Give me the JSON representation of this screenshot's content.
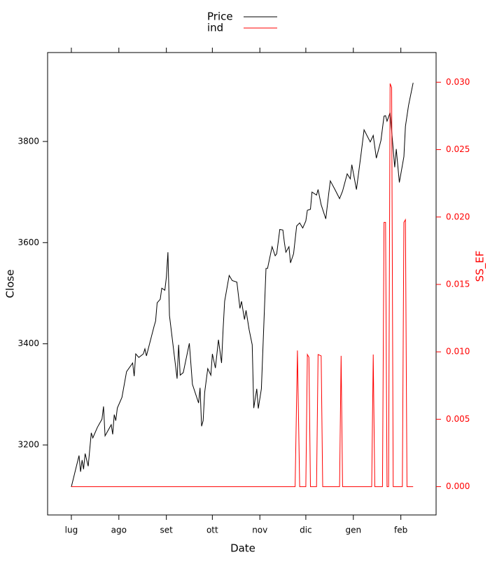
{
  "chart_data": {
    "type": "line",
    "x_label": "Date",
    "y_label": "Close",
    "y2_label": "SS_EF",
    "y2_color": "#ff0000",
    "xlim": [
      -15.5,
      238
    ],
    "xticks": [
      {
        "value": 0,
        "label": "lug"
      },
      {
        "value": 31,
        "label": "ago"
      },
      {
        "value": 62,
        "label": "set"
      },
      {
        "value": 92,
        "label": "ott"
      },
      {
        "value": 123,
        "label": "nov"
      },
      {
        "value": 153,
        "label": "dic"
      },
      {
        "value": 184,
        "label": "gen"
      },
      {
        "value": 215,
        "label": "feb"
      }
    ],
    "ylim": [
      3061.6,
      3975.8
    ],
    "yticks": [
      3200,
      3400,
      3600,
      3800
    ],
    "y2lim": [
      -0.0021,
      0.0322
    ],
    "y2ticks": [
      {
        "value": 0,
        "label": "0.000"
      },
      {
        "value": 0.005,
        "label": "0.005"
      },
      {
        "value": 0.01,
        "label": "0.010"
      },
      {
        "value": 0.015,
        "label": "0.015"
      },
      {
        "value": 0.02,
        "label": "0.020"
      },
      {
        "value": 0.025,
        "label": "0.025"
      },
      {
        "value": 0.03,
        "label": "0.030"
      }
    ],
    "legend": "top",
    "series": [
      {
        "name": "Price",
        "color": "#000000",
        "x": [
          0,
          5,
          6,
          7,
          8,
          9,
          11,
          13,
          14,
          17,
          20,
          21,
          22,
          26,
          27,
          28,
          29,
          30,
          33,
          36,
          40,
          41,
          42,
          44,
          47,
          48,
          49,
          54,
          55,
          56,
          58,
          59,
          61,
          62,
          63,
          64,
          69,
          70,
          71,
          73,
          77,
          79,
          83,
          84,
          85,
          86,
          87,
          89,
          91,
          92,
          94,
          96,
          98,
          99,
          100,
          103,
          105,
          108,
          110,
          111,
          113,
          114,
          116,
          118,
          119,
          121,
          122,
          124,
          126,
          127,
          128,
          131,
          133,
          134,
          136,
          138,
          139,
          140,
          142,
          143,
          145,
          147,
          149,
          151,
          153,
          154,
          156,
          157,
          160,
          161,
          163,
          166,
          168,
          169,
          172,
          175,
          177,
          180,
          182,
          183,
          186,
          189,
          191,
          195,
          197,
          199,
          202,
          204,
          205,
          206,
          208,
          211,
          212,
          214,
          217,
          218,
          220,
          223
        ],
        "values": [
          3117,
          3179,
          3147,
          3170,
          3152,
          3183,
          3158,
          3224,
          3214,
          3235,
          3251,
          3276,
          3218,
          3240,
          3221,
          3260,
          3248,
          3273,
          3294,
          3345,
          3362,
          3336,
          3380,
          3373,
          3380,
          3390,
          3376,
          3435,
          3445,
          3481,
          3488,
          3510,
          3506,
          3532,
          3581,
          3456,
          3331,
          3398,
          3338,
          3343,
          3401,
          3320,
          3283,
          3313,
          3237,
          3248,
          3304,
          3351,
          3338,
          3380,
          3352,
          3408,
          3362,
          3428,
          3484,
          3535,
          3525,
          3522,
          3470,
          3484,
          3448,
          3466,
          3428,
          3398,
          3273,
          3311,
          3272,
          3311,
          3470,
          3549,
          3549,
          3592,
          3574,
          3578,
          3626,
          3625,
          3600,
          3581,
          3592,
          3560,
          3578,
          3633,
          3639,
          3629,
          3643,
          3664,
          3666,
          3700,
          3694,
          3705,
          3675,
          3647,
          3698,
          3722,
          3705,
          3687,
          3702,
          3736,
          3726,
          3754,
          3705,
          3774,
          3823,
          3799,
          3812,
          3767,
          3802,
          3850,
          3851,
          3840,
          3857,
          3749,
          3785,
          3719,
          3770,
          3830,
          3871,
          3916
        ]
      },
      {
        "name": "ind",
        "color": "#ff0000",
        "axis": "y2",
        "x": [
          0,
          146,
          147.5,
          149,
          153,
          154,
          155,
          156,
          160,
          161,
          163,
          164,
          175,
          176,
          177,
          196,
          197,
          198,
          203,
          204,
          205,
          206,
          207,
          208,
          209,
          210,
          216,
          217,
          218,
          219,
          223
        ],
        "values": [
          0,
          0,
          0.0101,
          0,
          0,
          0.0098,
          0.0096,
          0,
          0,
          0.0098,
          0.0097,
          0,
          0,
          0.0097,
          0,
          0,
          0.0098,
          0,
          0,
          0.0196,
          0.0196,
          0,
          0,
          0.0299,
          0.0296,
          0,
          0,
          0.0196,
          0.0198,
          0,
          0
        ]
      }
    ]
  }
}
